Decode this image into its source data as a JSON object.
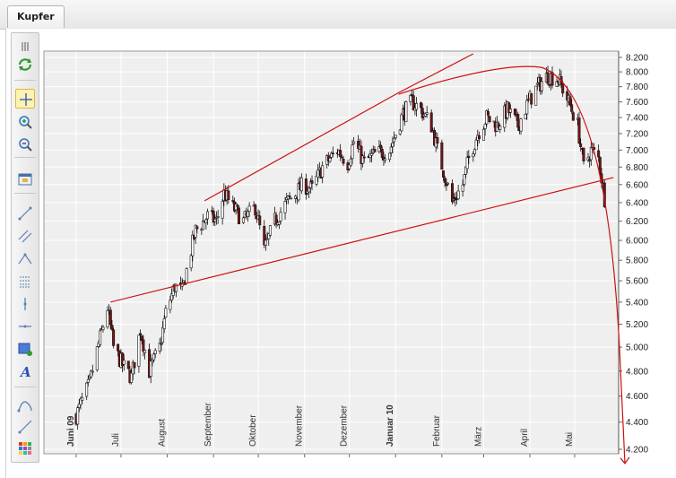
{
  "tab": {
    "label": "Kupfer"
  },
  "toolbar": {
    "tools": [
      {
        "name": "handle-icon"
      },
      {
        "name": "refresh-icon"
      },
      {
        "name": "crosshair-icon",
        "active": true
      },
      {
        "name": "zoom-in-icon"
      },
      {
        "name": "zoom-out-icon"
      },
      {
        "name": "chart-window-icon"
      },
      {
        "name": "line-tool-icon"
      },
      {
        "name": "parallel-line-icon"
      },
      {
        "name": "triangle-tool-icon"
      },
      {
        "name": "fibonacci-icon"
      },
      {
        "name": "vertical-line-icon"
      },
      {
        "name": "horizontal-line-icon"
      },
      {
        "name": "rectangle-tool-icon"
      },
      {
        "name": "text-tool-icon"
      },
      {
        "name": "curve-tool-icon"
      },
      {
        "name": "ray-tool-icon"
      },
      {
        "name": "color-palette-icon"
      }
    ]
  },
  "chart_data": {
    "type": "candlestick",
    "title": "",
    "y_ticks": [
      "8.200",
      "8.000",
      "7.800",
      "7.600",
      "7.400",
      "7.200",
      "7.000",
      "6.800",
      "6.600",
      "6.400",
      "6.200",
      "6.000",
      "5.800",
      "5.600",
      "5.400",
      "5.200",
      "5.000",
      "4.800",
      "4.600",
      "4.400",
      "4.200"
    ],
    "ylim": [
      4100,
      8280
    ],
    "y_scale": "log",
    "x_labels": [
      {
        "label": "Juni 09",
        "bold": true
      },
      {
        "label": "Juli",
        "bold": false
      },
      {
        "label": "August",
        "bold": false
      },
      {
        "label": "September",
        "bold": false
      },
      {
        "label": "Oktober",
        "bold": false
      },
      {
        "label": "November",
        "bold": false
      },
      {
        "label": "Dezember",
        "bold": false
      },
      {
        "label": "Januar 10",
        "bold": true
      },
      {
        "label": "Februar",
        "bold": false
      },
      {
        "label": "März",
        "bold": false
      },
      {
        "label": "April",
        "bold": false
      },
      {
        "label": "Mai",
        "bold": false
      }
    ],
    "price_path_close": [
      {
        "t": "2009-06-01",
        "v": 4450
      },
      {
        "t": "2009-06-10",
        "v": 4700
      },
      {
        "t": "2009-06-22",
        "v": 5350
      },
      {
        "t": "2009-06-26",
        "v": 5000
      },
      {
        "t": "2009-07-02",
        "v": 4850
      },
      {
        "t": "2009-07-08",
        "v": 4750
      },
      {
        "t": "2009-07-14",
        "v": 5150
      },
      {
        "t": "2009-07-20",
        "v": 4800
      },
      {
        "t": "2009-07-27",
        "v": 5000
      },
      {
        "t": "2009-07-31",
        "v": 5300
      },
      {
        "t": "2009-08-06",
        "v": 5550
      },
      {
        "t": "2009-08-11",
        "v": 5500
      },
      {
        "t": "2009-08-14",
        "v": 5700
      },
      {
        "t": "2009-08-20",
        "v": 6100
      },
      {
        "t": "2009-08-28",
        "v": 6250
      },
      {
        "t": "2009-09-03",
        "v": 6200
      },
      {
        "t": "2009-09-08",
        "v": 6500
      },
      {
        "t": "2009-09-14",
        "v": 6350
      },
      {
        "t": "2009-09-21",
        "v": 6200
      },
      {
        "t": "2009-09-29",
        "v": 6350
      },
      {
        "t": "2009-10-05",
        "v": 5900
      },
      {
        "t": "2009-10-12",
        "v": 6200
      },
      {
        "t": "2009-10-20",
        "v": 6400
      },
      {
        "t": "2009-10-26",
        "v": 6500
      },
      {
        "t": "2009-10-31",
        "v": 6600
      },
      {
        "t": "2009-11-06",
        "v": 6550
      },
      {
        "t": "2009-11-13",
        "v": 6800
      },
      {
        "t": "2009-11-23",
        "v": 7000
      },
      {
        "t": "2009-11-30",
        "v": 6850
      },
      {
        "t": "2009-12-04",
        "v": 7100
      },
      {
        "t": "2009-12-11",
        "v": 6850
      },
      {
        "t": "2009-12-18",
        "v": 6950
      },
      {
        "t": "2009-12-28",
        "v": 7000
      },
      {
        "t": "2010-01-06",
        "v": 7450
      },
      {
        "t": "2010-01-12",
        "v": 7600
      },
      {
        "t": "2010-01-18",
        "v": 7500
      },
      {
        "t": "2010-01-25",
        "v": 7300
      },
      {
        "t": "2010-01-29",
        "v": 7000
      },
      {
        "t": "2010-02-03",
        "v": 6700
      },
      {
        "t": "2010-02-08",
        "v": 6400
      },
      {
        "t": "2010-02-15",
        "v": 6600
      },
      {
        "t": "2010-02-19",
        "v": 6900
      },
      {
        "t": "2010-02-25",
        "v": 7200
      },
      {
        "t": "2010-03-03",
        "v": 7400
      },
      {
        "t": "2010-03-10",
        "v": 7300
      },
      {
        "t": "2010-03-17",
        "v": 7500
      },
      {
        "t": "2010-03-24",
        "v": 7300
      },
      {
        "t": "2010-03-31",
        "v": 7600
      },
      {
        "t": "2010-04-06",
        "v": 7800
      },
      {
        "t": "2010-04-13",
        "v": 7950
      },
      {
        "t": "2010-04-20",
        "v": 7900
      },
      {
        "t": "2010-04-27",
        "v": 7600
      },
      {
        "t": "2010-05-03",
        "v": 7300
      },
      {
        "t": "2010-05-07",
        "v": 6800
      },
      {
        "t": "2010-05-12",
        "v": 7000
      },
      {
        "t": "2010-05-17",
        "v": 6900
      },
      {
        "t": "2010-05-21",
        "v": 6450
      }
    ],
    "annotations": [
      {
        "kind": "trendline",
        "points": [
          {
            "t": "2009-06-24",
            "v": 5400
          },
          {
            "t": "2010-05-27",
            "v": 6680
          }
        ]
      },
      {
        "kind": "trendline",
        "points": [
          {
            "t": "2009-08-26",
            "v": 6420
          },
          {
            "t": "2010-01-03",
            "v": 7720
          },
          {
            "t": "2010-02-22",
            "v": 8250
          }
        ]
      },
      {
        "kind": "curve",
        "points": [
          {
            "t": "2010-01-03",
            "v": 7700
          },
          {
            "t": "2010-03-13",
            "v": 8000
          },
          {
            "t": "2010-04-09",
            "v": 8060
          },
          {
            "t": "2010-05-07",
            "v": 7800
          },
          {
            "t": "2010-05-31",
            "v": 5000
          },
          {
            "t": "2010-06-06",
            "v": 4100
          }
        ]
      }
    ]
  }
}
